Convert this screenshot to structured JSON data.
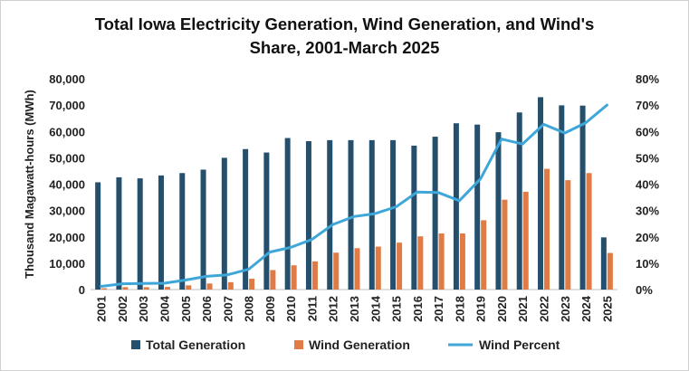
{
  "chart_data": {
    "type": "bar",
    "title_line1": "Total Iowa Electricity Generation, Wind Generation,  and Wind's",
    "title_line2": "Share, 2001-March 2025",
    "ylabel": "Thousand Magawatt-hours (MWh)",
    "xlabel": "",
    "ylim": [
      0,
      80000
    ],
    "y2lim": [
      0,
      0.8
    ],
    "y_ticks": [
      "0",
      "10,000",
      "20,000",
      "30,000",
      "40,000",
      "50,000",
      "60,000",
      "70,000",
      "80,000"
    ],
    "y2_ticks": [
      "0%",
      "10%",
      "20%",
      "30%",
      "40%",
      "50%",
      "60%",
      "70%",
      "80%"
    ],
    "categories": [
      "2001",
      "2002",
      "2003",
      "2004",
      "2005",
      "2006",
      "2007",
      "2008",
      "2009",
      "2010",
      "2011",
      "2012",
      "2013",
      "2014",
      "2015",
      "2016",
      "2017",
      "2018",
      "2019",
      "2020",
      "2021",
      "2022",
      "2023",
      "2024",
      "2025"
    ],
    "series": [
      {
        "name": "Total Generation",
        "kind": "bar",
        "axis": "left",
        "color": "#24506e",
        "values": [
          40700,
          42600,
          42200,
          43300,
          44200,
          45500,
          50000,
          53300,
          52000,
          57500,
          56300,
          56700,
          56700,
          56700,
          56700,
          54600,
          58000,
          63100,
          62600,
          59700,
          67200,
          73000,
          69900,
          69800,
          19800
        ]
      },
      {
        "name": "Wind Generation",
        "kind": "bar",
        "axis": "left",
        "color": "#e07b45",
        "values": [
          500,
          900,
          900,
          1000,
          1600,
          2300,
          2800,
          4100,
          7400,
          9200,
          10700,
          14000,
          15700,
          16300,
          17800,
          20200,
          21300,
          21300,
          26300,
          34100,
          37100,
          45800,
          41500,
          44200,
          13900
        ]
      },
      {
        "name": "Wind Percent",
        "kind": "line",
        "axis": "right",
        "color": "#3ea6d8",
        "values": [
          0.012,
          0.022,
          0.023,
          0.024,
          0.036,
          0.05,
          0.056,
          0.077,
          0.142,
          0.16,
          0.19,
          0.247,
          0.277,
          0.288,
          0.314,
          0.37,
          0.368,
          0.337,
          0.42,
          0.571,
          0.552,
          0.627,
          0.594,
          0.633,
          0.7
        ]
      }
    ],
    "legend_position": "bottom",
    "grid": false
  }
}
